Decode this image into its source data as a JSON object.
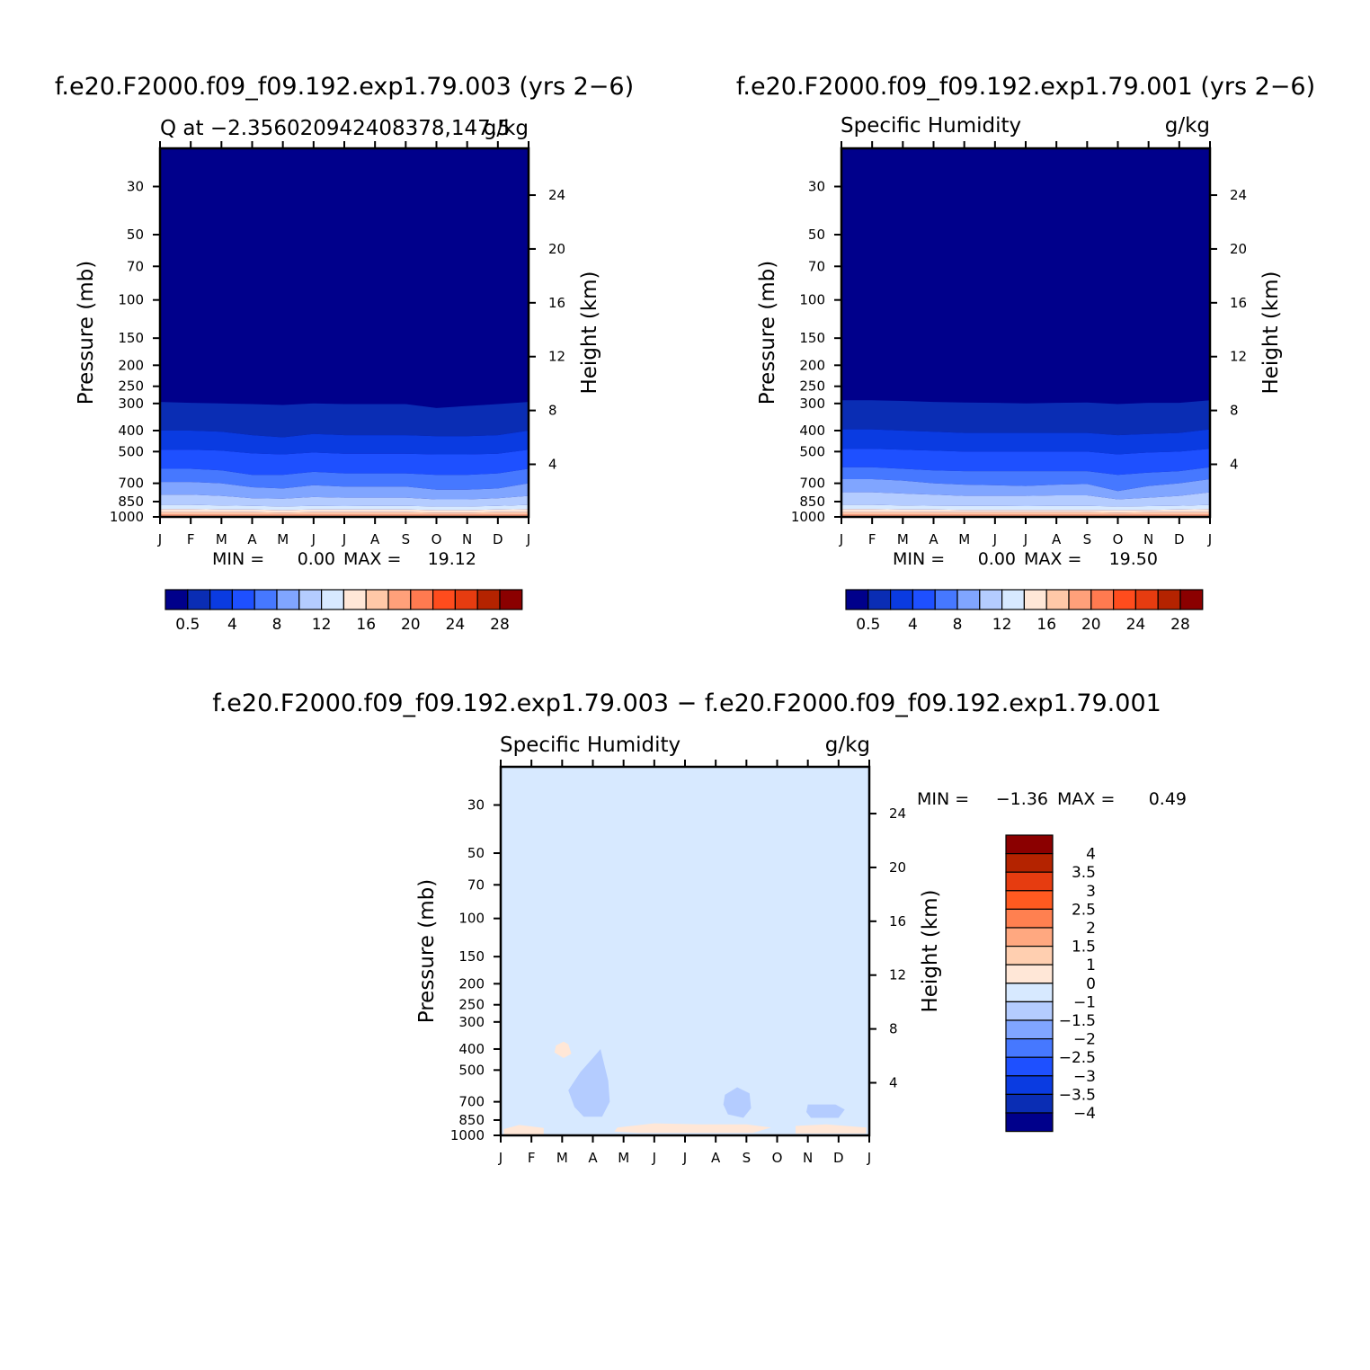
{
  "months": [
    "J",
    "F",
    "M",
    "A",
    "M",
    "J",
    "J",
    "A",
    "S",
    "O",
    "N",
    "D",
    "J"
  ],
  "pressure_ticks": [
    30,
    50,
    70,
    100,
    150,
    200,
    250,
    300,
    400,
    500,
    700,
    850,
    1000
  ],
  "height_ticks": [
    24,
    20,
    16,
    12,
    8,
    4
  ],
  "axis_labels": {
    "left": "Pressure (mb)",
    "right": "Height (km)"
  },
  "palette": [
    "#00008b",
    "#0a2db4",
    "#0a3be1",
    "#1e50ff",
    "#4678ff",
    "#80a5ff",
    "#b4ccff",
    "#d7e9ff",
    "#ffe7d7",
    "#ffc8a8",
    "#ffa07a",
    "#ff7a50",
    "#ff4c1d",
    "#e63c10",
    "#b42300",
    "#8b0000"
  ],
  "panels": [
    {
      "title": "f.e20.F2000.f09_f09.192.exp1.79.003 (yrs 2-6)",
      "subtitle_left": "Q at -2.356020942408378,147.5",
      "subtitle_right": "g/kg",
      "min_text": "MIN =",
      "min_value": "0.00",
      "max_text": "MAX =",
      "max_value": "19.12",
      "colorbar_labels": [
        "0.5",
        "4",
        "8",
        "12",
        "16",
        "20",
        "24",
        "28"
      ]
    },
    {
      "title": "f.e20.F2000.f09_f09.192.exp1.79.001 (yrs 2-6)",
      "subtitle_left": "Specific Humidity",
      "subtitle_right": "g/kg",
      "min_text": "MIN =",
      "min_value": "0.00",
      "max_text": "MAX =",
      "max_value": "19.50",
      "colorbar_labels": [
        "0.5",
        "4",
        "8",
        "12",
        "16",
        "20",
        "24",
        "28"
      ]
    },
    {
      "title": "f.e20.F2000.f09_f09.192.exp1.79.003 - f.e20.F2000.f09_f09.192.exp1.79.001",
      "subtitle_left": "Specific Humidity",
      "subtitle_right": "g/kg",
      "min_text": "MIN =",
      "min_value": "-1.36",
      "max_text": "MAX =",
      "max_value": "0.49",
      "colorbar_labels": [
        "4",
        "3.5",
        "3",
        "2.5",
        "2",
        "1.5",
        "1",
        "0",
        "-1",
        "-1.5",
        "-2",
        "-2.5",
        "-3",
        "-3.5",
        "-4"
      ],
      "colorbar_colors": [
        "#8b0000",
        "#b42300",
        "#e63c10",
        "#ff5a20",
        "#ff8050",
        "#ffa880",
        "#ffcfb0",
        "#ffe7d7",
        "#d7e9ff",
        "#b4ccff",
        "#80a5ff",
        "#4678ff",
        "#1e50ff",
        "#0a3be1",
        "#0a2db4",
        "#00008b"
      ]
    }
  ],
  "chart_data": [
    {
      "type": "heatmap",
      "title": "f.e20.F2000.f09_f09.192.exp1.79.003 (yrs 2-6)",
      "subtitle": "Q at -2.356020942408378,147.5",
      "units": "g/kg",
      "x": [
        "J",
        "F",
        "M",
        "A",
        "M",
        "J",
        "J",
        "A",
        "S",
        "O",
        "N",
        "D",
        "J"
      ],
      "ylabel": "Pressure (mb)",
      "y2label": "Height (km)",
      "ylim": [
        1000,
        20
      ],
      "yscale": "log",
      "levels": [
        0.5,
        2,
        4,
        6,
        8,
        10,
        12,
        14,
        16,
        18,
        20,
        22,
        24,
        26,
        28
      ],
      "contour_pressure_by_level": [
        [
          295,
          298,
          300,
          302,
          305,
          300,
          302,
          302,
          302,
          315,
          308,
          302,
          295
        ],
        [
          400,
          400,
          405,
          420,
          430,
          415,
          420,
          420,
          420,
          425,
          425,
          420,
          400
        ],
        [
          490,
          490,
          495,
          510,
          515,
          505,
          512,
          512,
          512,
          515,
          515,
          512,
          490
        ],
        [
          600,
          600,
          610,
          640,
          640,
          620,
          630,
          630,
          630,
          640,
          640,
          630,
          600
        ],
        [
          690,
          690,
          700,
          730,
          740,
          715,
          725,
          725,
          725,
          750,
          750,
          740,
          700
        ],
        [
          790,
          790,
          800,
          820,
          825,
          810,
          815,
          815,
          815,
          830,
          830,
          820,
          800
        ],
        [
          880,
          880,
          885,
          890,
          895,
          890,
          892,
          890,
          890,
          895,
          895,
          890,
          880
        ],
        [
          920,
          920,
          925,
          925,
          930,
          925,
          925,
          925,
          925,
          930,
          930,
          925,
          920
        ],
        [
          950,
          950,
          950,
          952,
          955,
          952,
          952,
          952,
          952,
          955,
          955,
          952,
          950
        ],
        [
          975,
          975,
          975,
          975,
          975,
          975,
          975,
          975,
          975,
          975,
          975,
          975,
          975
        ]
      ],
      "min": 0.0,
      "max": 19.12
    },
    {
      "type": "heatmap",
      "title": "f.e20.F2000.f09_f09.192.exp1.79.001 (yrs 2-6)",
      "subtitle": "Specific Humidity",
      "units": "g/kg",
      "x": [
        "J",
        "F",
        "M",
        "A",
        "M",
        "J",
        "J",
        "A",
        "S",
        "O",
        "N",
        "D",
        "J"
      ],
      "ylabel": "Pressure (mb)",
      "y2label": "Height (km)",
      "ylim": [
        1000,
        20
      ],
      "yscale": "log",
      "levels": [
        0.5,
        2,
        4,
        6,
        8,
        10,
        12,
        14,
        16,
        18,
        20,
        22,
        24,
        26,
        28
      ],
      "contour_pressure_by_level": [
        [
          290,
          290,
          292,
          295,
          297,
          298,
          300,
          298,
          297,
          302,
          298,
          298,
          290
        ],
        [
          395,
          395,
          400,
          405,
          410,
          410,
          410,
          410,
          410,
          420,
          415,
          410,
          395
        ],
        [
          485,
          485,
          490,
          495,
          500,
          500,
          500,
          500,
          500,
          515,
          505,
          500,
          485
        ],
        [
          590,
          590,
          600,
          610,
          615,
          615,
          615,
          615,
          615,
          640,
          625,
          615,
          590
        ],
        [
          670,
          670,
          680,
          700,
          710,
          715,
          720,
          710,
          705,
          760,
          720,
          700,
          670
        ],
        [
          770,
          770,
          780,
          790,
          800,
          800,
          800,
          795,
          795,
          830,
          815,
          800,
          770
        ],
        [
          880,
          880,
          885,
          888,
          890,
          890,
          892,
          890,
          890,
          895,
          892,
          888,
          880
        ],
        [
          920,
          920,
          925,
          925,
          928,
          928,
          928,
          928,
          928,
          930,
          928,
          925,
          920
        ],
        [
          950,
          950,
          950,
          952,
          952,
          952,
          952,
          952,
          952,
          955,
          952,
          952,
          950
        ],
        [
          975,
          975,
          975,
          975,
          975,
          975,
          975,
          975,
          975,
          975,
          975,
          975,
          975
        ]
      ],
      "min": 0.0,
      "max": 19.5
    },
    {
      "type": "heatmap",
      "title": "f.e20.F2000.f09_f09.192.exp1.79.003 - f.e20.F2000.f09_f09.192.exp1.79.001",
      "subtitle": "Specific Humidity",
      "units": "g/kg",
      "x": [
        "J",
        "F",
        "M",
        "A",
        "M",
        "J",
        "J",
        "A",
        "S",
        "O",
        "N",
        "D",
        "J"
      ],
      "ylabel": "Pressure (mb)",
      "y2label": "Height (km)",
      "ylim": [
        1000,
        20
      ],
      "yscale": "log",
      "levels": [
        -4,
        -3.5,
        -3,
        -2.5,
        -2,
        -1.5,
        -1,
        0,
        1,
        1.5,
        2,
        2.5,
        3,
        3.5,
        4
      ],
      "background_range": [
        -1,
        0
      ],
      "regions": [
        {
          "range": [
            0,
            1
          ],
          "points": [
            [
              1.8,
              385
            ],
            [
              2.05,
              370
            ],
            [
              2.2,
              380
            ],
            [
              2.3,
              420
            ],
            [
              2.05,
              440
            ],
            [
              1.75,
              415
            ]
          ]
        },
        {
          "range": [
            -1.5,
            -1
          ],
          "points": [
            [
              2.2,
              620
            ],
            [
              2.6,
              510
            ],
            [
              3.0,
              440
            ],
            [
              3.25,
              400
            ],
            [
              3.5,
              560
            ],
            [
              3.55,
              700
            ],
            [
              3.3,
              820
            ],
            [
              2.7,
              820
            ],
            [
              2.4,
              740
            ]
          ]
        },
        {
          "range": [
            -1.5,
            -1
          ],
          "points": [
            [
              7.3,
              650
            ],
            [
              7.7,
              600
            ],
            [
              8.1,
              640
            ],
            [
              8.15,
              750
            ],
            [
              7.9,
              830
            ],
            [
              7.4,
              800
            ],
            [
              7.25,
              720
            ]
          ]
        },
        {
          "range": [
            -1.5,
            -1
          ],
          "points": [
            [
              10.0,
              720
            ],
            [
              10.9,
              720
            ],
            [
              11.2,
              760
            ],
            [
              11.0,
              830
            ],
            [
              10.1,
              830
            ],
            [
              9.95,
              780
            ]
          ]
        },
        {
          "range": [
            0,
            1
          ],
          "points": [
            [
              0.1,
              935
            ],
            [
              0.6,
              895
            ],
            [
              1.4,
              925
            ],
            [
              1.4,
              990
            ],
            [
              0.1,
              990
            ]
          ]
        },
        {
          "range": [
            0,
            1
          ],
          "points": [
            [
              3.8,
              920
            ],
            [
              5.0,
              880
            ],
            [
              6.5,
              890
            ],
            [
              8.0,
              890
            ],
            [
              8.8,
              920
            ],
            [
              8.2,
              975
            ],
            [
              6.5,
              975
            ],
            [
              4.5,
              975
            ],
            [
              3.7,
              960
            ]
          ]
        },
        {
          "range": [
            0,
            1
          ],
          "points": [
            [
              9.6,
              905
            ],
            [
              10.6,
              890
            ],
            [
              11.9,
              920
            ],
            [
              11.9,
              980
            ],
            [
              9.6,
              980
            ]
          ]
        }
      ],
      "min": -1.36,
      "max": 0.49
    }
  ]
}
